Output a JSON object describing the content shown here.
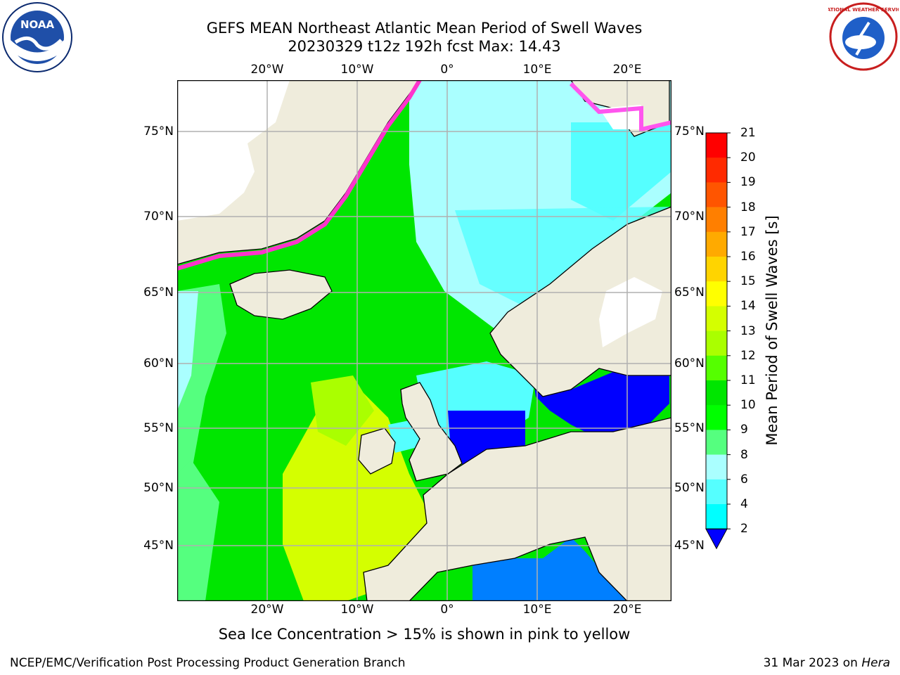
{
  "header": {
    "title_line1": "GEFS MEAN Northeast Atlantic Mean Period of Swell Waves",
    "title_line2": "20230329 t12z 192h fcst   Max: 14.43"
  },
  "logos": {
    "left": "NOAA",
    "right": "NATIONAL WEATHER SERVICE"
  },
  "map": {
    "lon_ticks": [
      "20°W",
      "10°W",
      "0°",
      "10°E",
      "20°E"
    ],
    "lat_ticks": [
      "75°N",
      "70°N",
      "65°N",
      "60°N",
      "55°N",
      "50°N",
      "45°N"
    ]
  },
  "colorbar": {
    "label": "Mean Period of Swell Waves [s]",
    "ticks": [
      "21",
      "20",
      "19",
      "18",
      "17",
      "16",
      "15",
      "14",
      "13",
      "12",
      "11",
      "10",
      "9",
      "8",
      "6",
      "4",
      "2"
    ],
    "colors": [
      "#ff0000",
      "#ff2a00",
      "#ff5500",
      "#ff7f00",
      "#ffaa00",
      "#ffd400",
      "#ffff00",
      "#d4ff00",
      "#aaff00",
      "#55ff00",
      "#00e600",
      "#00ff00",
      "#55ff7f",
      "#aaffff",
      "#55ffff",
      "#00ffff",
      "#00e5ff",
      "#007fff",
      "#0000ff"
    ]
  },
  "footer": {
    "note": "Sea Ice Concentration > 15% is shown in pink to yellow",
    "left": "NCEP/EMC/Verification Post Processing Product Generation Branch",
    "date": "31 Mar 2023 on",
    "machine": "Hera"
  }
}
